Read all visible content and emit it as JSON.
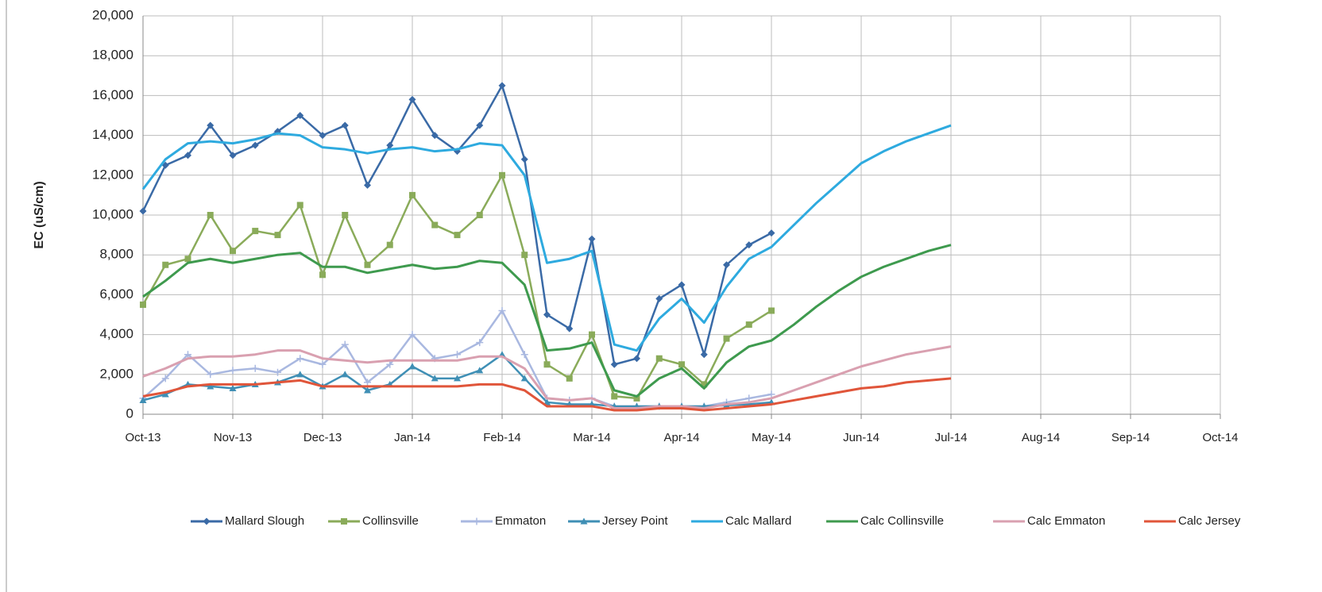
{
  "chart_data": {
    "type": "line",
    "y_label": "EC (uS/cm)",
    "xlim": [
      0,
      12
    ],
    "xticks": [
      {
        "value": 0,
        "label": "Oct-13"
      },
      {
        "value": 1,
        "label": "Nov-13"
      },
      {
        "value": 2,
        "label": "Dec-13"
      },
      {
        "value": 3,
        "label": "Jan-14"
      },
      {
        "value": 4,
        "label": "Feb-14"
      },
      {
        "value": 5,
        "label": "Mar-14"
      },
      {
        "value": 6,
        "label": "Apr-14"
      },
      {
        "value": 7,
        "label": "May-14"
      },
      {
        "value": 8,
        "label": "Jun-14"
      },
      {
        "value": 9,
        "label": "Jul-14"
      },
      {
        "value": 10,
        "label": "Aug-14"
      },
      {
        "value": 11,
        "label": "Sep-14"
      },
      {
        "value": 12,
        "label": "Oct-14"
      }
    ],
    "ylim": [
      0,
      20000
    ],
    "yticks": [
      0,
      {
        "value": 2000,
        "label": "2,000"
      },
      {
        "value": 4000,
        "label": "4,000"
      },
      {
        "value": 6000,
        "label": "6,000"
      },
      {
        "value": 8000,
        "label": "8,000"
      },
      {
        "value": 10000,
        "label": "10,000"
      },
      {
        "value": 12000,
        "label": "12,000"
      },
      {
        "value": 14000,
        "label": "14,000"
      },
      {
        "value": 16000,
        "label": "16,000"
      },
      {
        "value": 18000,
        "label": "18,000"
      },
      {
        "value": 20000,
        "label": "20,000"
      }
    ],
    "grid": true,
    "legend": "bottom",
    "x": [
      0,
      0.25,
      0.5,
      0.75,
      1,
      1.25,
      1.5,
      1.75,
      2,
      2.25,
      2.5,
      2.75,
      3,
      3.25,
      3.5,
      3.75,
      4,
      4.25,
      4.5,
      4.75,
      5,
      5.25,
      5.5,
      5.75,
      6,
      6.25,
      6.5,
      6.75,
      7,
      7.25,
      7.5,
      7.75,
      8,
      8.25,
      8.5,
      8.75,
      9
    ],
    "series": [
      {
        "name": "Mallard Slough",
        "color": "#3a6aa6",
        "marker": "diamond",
        "values": [
          10200,
          12500,
          13000,
          14500,
          13000,
          13500,
          14200,
          15000,
          14000,
          14500,
          11500,
          13500,
          15800,
          14000,
          13200,
          14500,
          16500,
          12800,
          5000,
          4300,
          8800,
          2500,
          2800,
          5800,
          6500,
          3000,
          7500,
          8500,
          9100,
          null,
          null,
          null,
          null,
          null,
          null,
          null,
          null
        ]
      },
      {
        "name": "Collinsville",
        "color": "#8aab5a",
        "marker": "square",
        "values": [
          5500,
          7500,
          7800,
          10000,
          8200,
          9200,
          9000,
          10500,
          7000,
          10000,
          7500,
          8500,
          11000,
          9500,
          9000,
          10000,
          12000,
          8000,
          2500,
          1800,
          4000,
          900,
          800,
          2800,
          2500,
          1500,
          3800,
          4500,
          5200,
          null,
          null,
          null,
          null,
          null,
          null,
          null,
          null
        ]
      },
      {
        "name": "Emmaton",
        "color": "#a9b8e0",
        "marker": "plus",
        "values": [
          800,
          1800,
          3000,
          2000,
          2200,
          2300,
          2100,
          2800,
          2500,
          3500,
          1600,
          2500,
          4000,
          2800,
          3000,
          3600,
          5200,
          3000,
          800,
          700,
          800,
          400,
          400,
          400,
          400,
          400,
          600,
          800,
          1000,
          null,
          null,
          null,
          null,
          null,
          null,
          null,
          null
        ]
      },
      {
        "name": "Jersey Point",
        "color": "#3f8fb5",
        "marker": "triangle",
        "values": [
          700,
          1000,
          1500,
          1400,
          1300,
          1500,
          1600,
          2000,
          1400,
          2000,
          1200,
          1500,
          2400,
          1800,
          1800,
          2200,
          3000,
          1800,
          600,
          500,
          500,
          400,
          400,
          400,
          400,
          400,
          450,
          500,
          600,
          null,
          null,
          null,
          null,
          null,
          null,
          null,
          null
        ]
      },
      {
        "name": "Calc Mallard",
        "color": "#2eaadf",
        "marker": "none",
        "values": [
          11300,
          12800,
          13600,
          13700,
          13600,
          13800,
          14100,
          14000,
          13400,
          13300,
          13100,
          13300,
          13400,
          13200,
          13300,
          13600,
          13500,
          12000,
          7600,
          7800,
          8200,
          3500,
          3200,
          4800,
          5800,
          4600,
          6400,
          7800,
          8400,
          9500,
          10600,
          11600,
          12600,
          13200,
          13700,
          14100,
          14500
        ]
      },
      {
        "name": "Calc Collinsville",
        "color": "#3e9a4e",
        "marker": "none",
        "values": [
          5900,
          6700,
          7600,
          7800,
          7600,
          7800,
          8000,
          8100,
          7400,
          7400,
          7100,
          7300,
          7500,
          7300,
          7400,
          7700,
          7600,
          6500,
          3200,
          3300,
          3600,
          1200,
          900,
          1800,
          2300,
          1300,
          2600,
          3400,
          3700,
          4500,
          5400,
          6200,
          6900,
          7400,
          7800,
          8200,
          8500
        ]
      },
      {
        "name": "Calc Emmaton",
        "color": "#d9a0b0",
        "marker": "none",
        "values": [
          1900,
          2300,
          2800,
          2900,
          2900,
          3000,
          3200,
          3200,
          2800,
          2700,
          2600,
          2700,
          2700,
          2700,
          2700,
          2900,
          2900,
          2300,
          800,
          700,
          800,
          300,
          300,
          400,
          400,
          300,
          500,
          600,
          800,
          1200,
          1600,
          2000,
          2400,
          2700,
          3000,
          3200,
          3400
        ]
      },
      {
        "name": "Calc Jersey",
        "color": "#e0553a",
        "marker": "none",
        "values": [
          900,
          1100,
          1400,
          1500,
          1500,
          1500,
          1600,
          1700,
          1400,
          1400,
          1400,
          1400,
          1400,
          1400,
          1400,
          1500,
          1500,
          1200,
          400,
          400,
          400,
          200,
          200,
          300,
          300,
          200,
          300,
          400,
          500,
          700,
          900,
          1100,
          1300,
          1400,
          1600,
          1700,
          1800
        ]
      }
    ]
  }
}
